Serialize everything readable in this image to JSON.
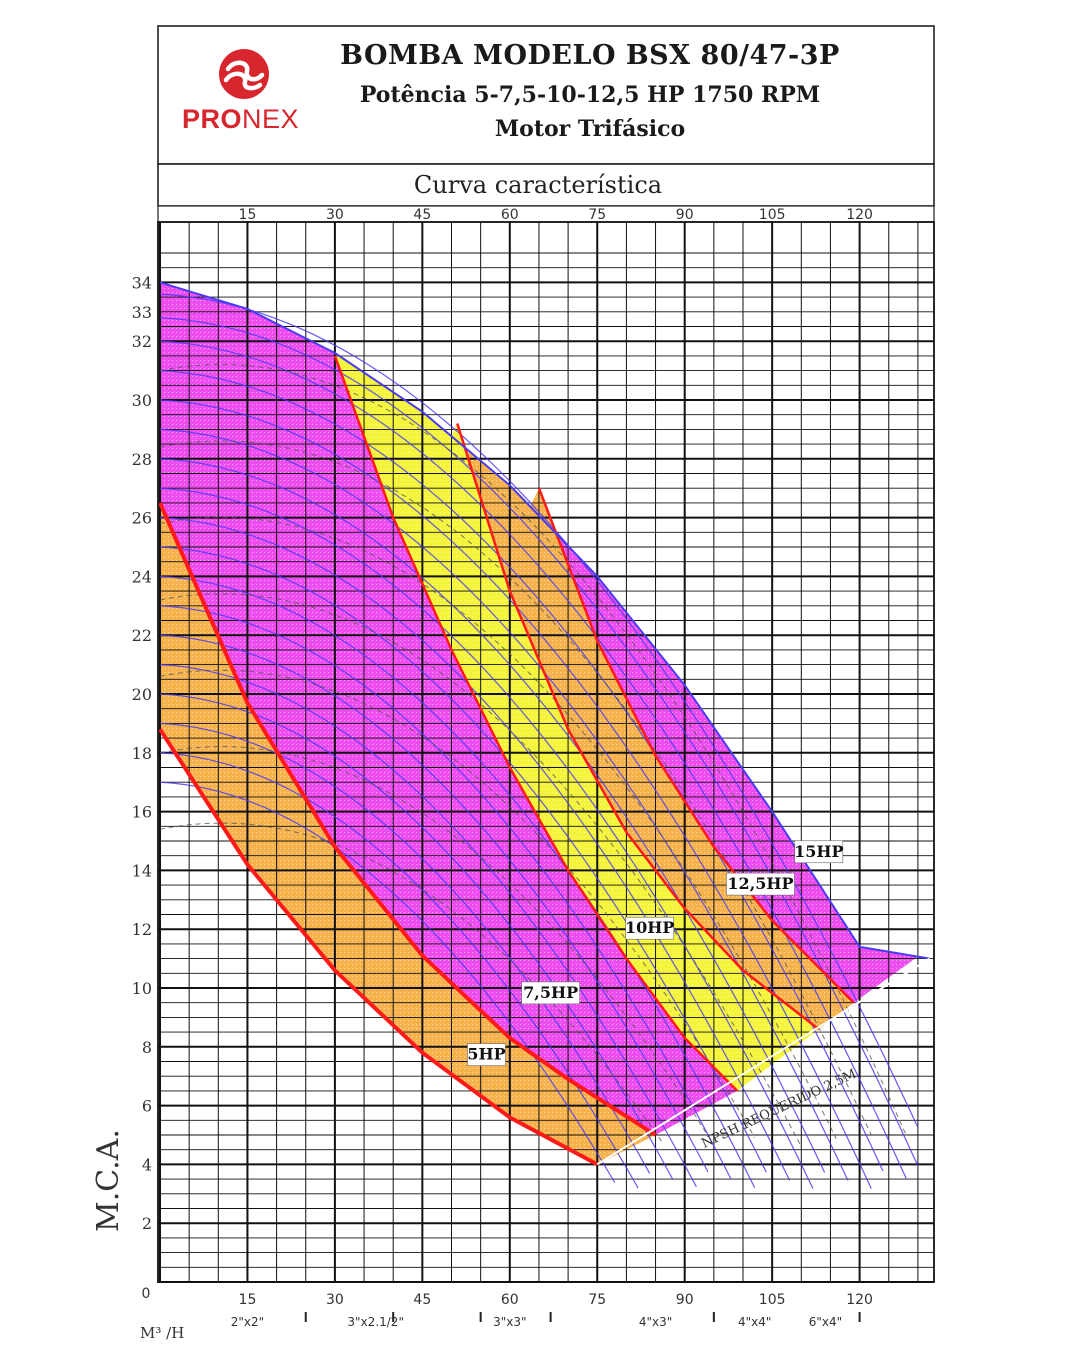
{
  "header": {
    "brand_strong": "PRO",
    "brand_light": "NEX",
    "title": "BOMBA MODELO BSX 80/47-3P",
    "power_line": "Potência 5-7,5-10-12,5 HP 1750 RPM",
    "motor_line": "Motor Trifásico",
    "subtitle": "Curva característica"
  },
  "colors": {
    "brand": "#d7262d",
    "magenta": "#ee4df0",
    "orange": "#f6b24c",
    "yellow": "#f4f43a",
    "red_curve": "#ff1a1a",
    "blue_curve": "#4a3cf2"
  },
  "chart_data": {
    "type": "line",
    "xlabel": "M³ /H",
    "ylabel": "M.C.A.",
    "xlim": [
      0,
      130
    ],
    "ylim": [
      0,
      35
    ],
    "x_ticks": [
      15,
      30,
      45,
      60,
      75,
      90,
      105,
      120
    ],
    "y_ticks": [
      0,
      2,
      4,
      6,
      8,
      10,
      12,
      14,
      16,
      18,
      20,
      22,
      24,
      26,
      28,
      30,
      32,
      33,
      34
    ],
    "pipe_sizes": [
      "2\"x2\"",
      "3\"x2.1/2\"",
      "3\"x3\"",
      "4\"x3\"",
      "4\"x4\"",
      "6\"x4\""
    ],
    "npsh_label": "NPSH REQUERIDO 2,5M",
    "zones": [
      {
        "name": "5HP",
        "color": "orange"
      },
      {
        "name": "7,5HP",
        "color": "magenta"
      },
      {
        "name": "10HP",
        "color": "yellow"
      },
      {
        "name": "12,5HP",
        "color": "orange"
      },
      {
        "name": "15HP",
        "color": "magenta"
      }
    ],
    "series": [
      {
        "name": "5HP",
        "x": [
          0,
          15,
          30,
          45,
          60,
          75
        ],
        "y": [
          18.8,
          14.2,
          10.6,
          7.8,
          5.6,
          4.0
        ]
      },
      {
        "name": "7,5HP",
        "x": [
          0,
          15,
          30,
          45,
          60,
          70,
          85
        ],
        "y": [
          26.5,
          19.7,
          14.8,
          11.1,
          8.3,
          6.9,
          5.0
        ]
      },
      {
        "name": "10HP",
        "x": [
          30,
          40,
          50,
          60,
          70,
          80,
          90,
          99
        ],
        "y": [
          31.5,
          26.0,
          21.5,
          17.5,
          14.0,
          11.0,
          8.3,
          6.5
        ]
      },
      {
        "name": "12,5HP",
        "x": [
          51,
          60,
          70,
          80,
          90,
          100,
          113
        ],
        "y": [
          29.2,
          23.5,
          18.8,
          15.3,
          12.7,
          10.6,
          8.6
        ]
      },
      {
        "name": "15HP",
        "x": [
          65,
          75,
          85,
          95,
          105,
          119
        ],
        "y": [
          27.0,
          21.8,
          17.9,
          14.8,
          12.3,
          9.5
        ]
      },
      {
        "name": "max",
        "x": [
          0,
          15,
          30,
          45,
          60,
          75,
          90,
          105,
          120,
          132
        ],
        "y": [
          34.0,
          33.1,
          31.6,
          29.6,
          27.1,
          24.0,
          20.3,
          16.0,
          11.4,
          11.0
        ]
      }
    ]
  }
}
